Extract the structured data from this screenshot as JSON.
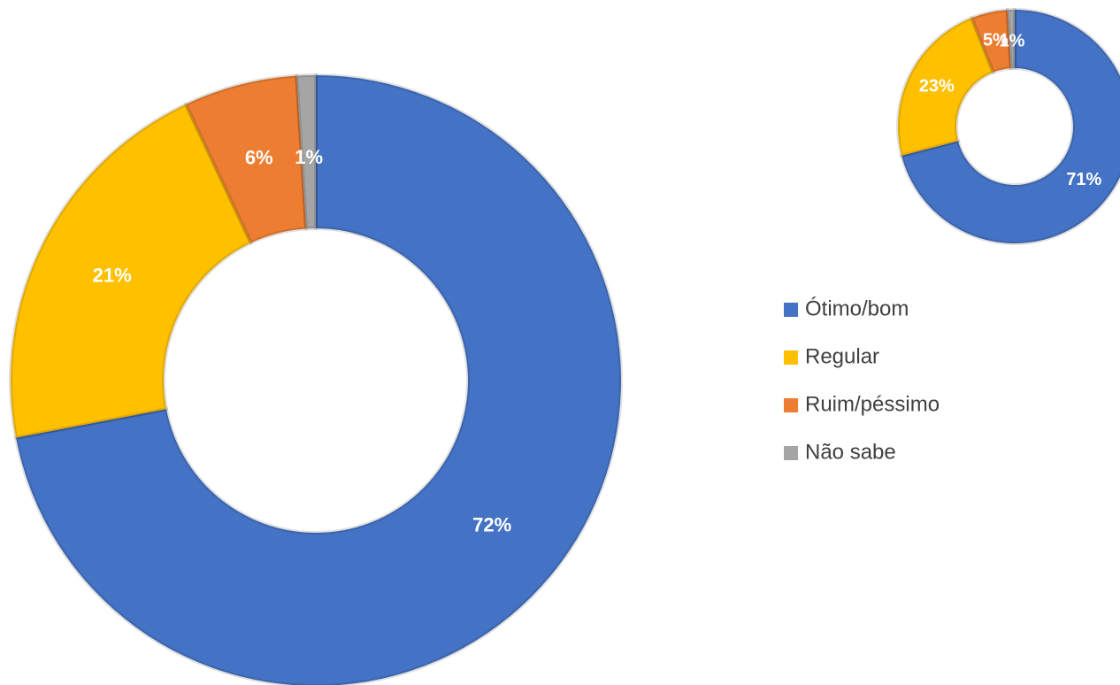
{
  "chart_data": [
    {
      "type": "donut",
      "categories": [
        "Ótimo/bom",
        "Regular",
        "Ruim/péssimo",
        "Não sabe"
      ],
      "values": [
        72,
        21,
        6,
        1
      ],
      "value_labels": [
        "72%",
        "21%",
        "6%",
        "1%"
      ],
      "colors": [
        "#4472c4",
        "#ffc000",
        "#ed7d31",
        "#a5a5a5"
      ],
      "legend": "right"
    },
    {
      "type": "donut",
      "categories": [
        "Ótimo/bom",
        "Regular",
        "Ruim/péssimo",
        "Não sabe"
      ],
      "values": [
        71,
        23,
        5,
        1
      ],
      "value_labels": [
        "71%",
        "23%",
        "5%",
        "1%"
      ],
      "colors": [
        "#4472c4",
        "#ffc000",
        "#ed7d31",
        "#a5a5a5"
      ]
    }
  ]
}
